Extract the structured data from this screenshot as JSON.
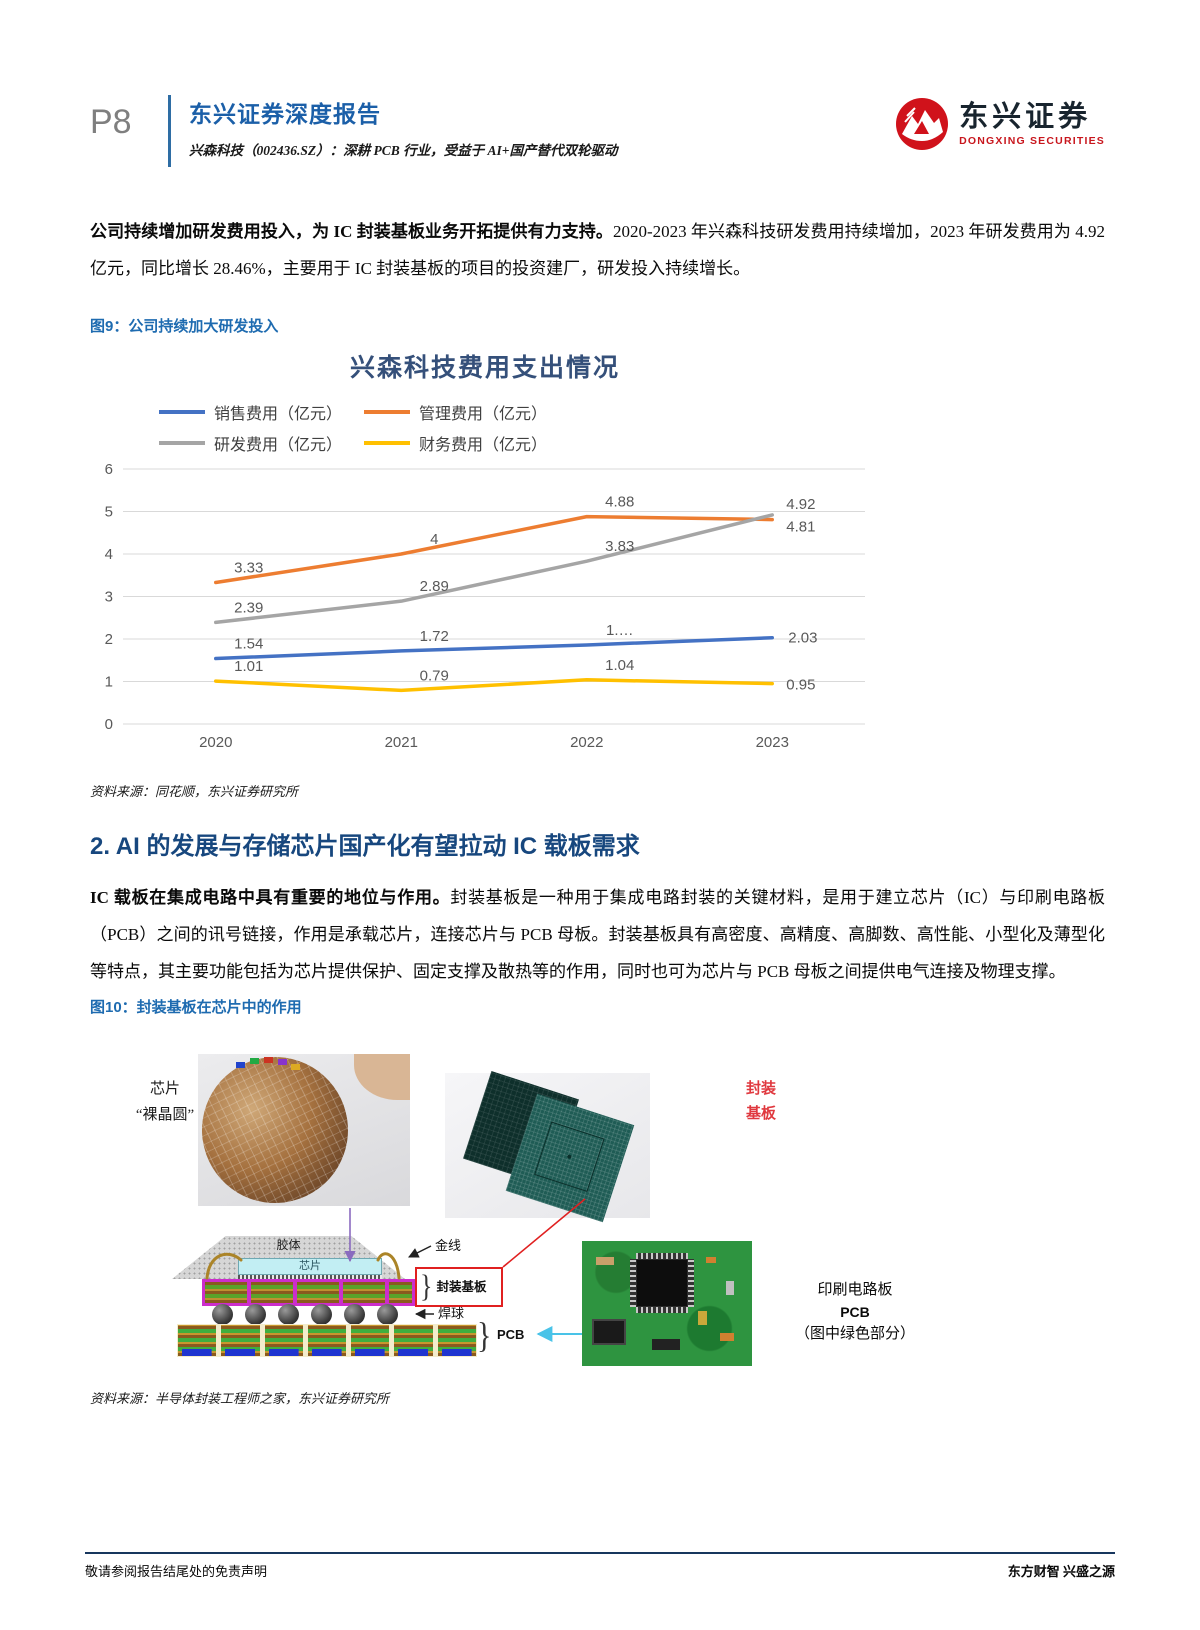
{
  "page": {
    "page_number": "P8",
    "report_type": "东兴证券深度报告",
    "report_subtitle": "兴森科技（002436.SZ）：深耕 PCB 行业，受益于 AI+国产替代双轮驱动",
    "logo_cn": "东兴证券",
    "logo_en": "DONGXING SECURITIES",
    "brand_red": "#c8161d",
    "heading_blue": "#1b5fa8"
  },
  "para1": {
    "bold": "公司持续增加研发费用投入，为 IC 封装基板业务开拓提供有力支持。",
    "rest": "2020-2023 年兴森科技研发费用持续增加，2023 年研发费用为 4.92 亿元，同比增长 28.46%，主要用于 IC 封装基板的项目的投资建厂，研发投入持续增长。"
  },
  "figure9": {
    "caption": "图9：公司持续加大研发投入",
    "source": "资料来源：同花顺，东兴证券研究所"
  },
  "chart_data": {
    "type": "line",
    "title": "兴森科技费用支出情况",
    "categories": [
      "2020",
      "2021",
      "2022",
      "2023"
    ],
    "series": [
      {
        "name": "销售费用（亿元）",
        "color": "#4472c4",
        "values": [
          1.54,
          1.72,
          1.86,
          2.03
        ],
        "labels": [
          "1.54",
          "1.72",
          "1.…",
          "2.03"
        ]
      },
      {
        "name": "管理费用（亿元）",
        "color": "#ed7d31",
        "values": [
          3.33,
          4,
          4.88,
          4.81
        ],
        "labels": [
          "3.33",
          "4",
          "4.88",
          "4.81"
        ]
      },
      {
        "name": "研发费用（亿元）",
        "color": "#a5a5a5",
        "values": [
          2.39,
          2.89,
          3.83,
          4.92
        ],
        "labels": [
          "2.39",
          "2.89",
          "3.83",
          "4.92"
        ]
      },
      {
        "name": "财务费用（亿元）",
        "color": "#ffc000",
        "values": [
          1.01,
          0.79,
          1.04,
          0.95
        ],
        "labels": [
          "1.01",
          "0.79",
          "1.04",
          "0.95"
        ]
      }
    ],
    "ylim": [
      0,
      6
    ],
    "yticks": [
      0,
      1,
      2,
      3,
      4,
      5,
      6
    ],
    "grid": true,
    "legend_position": "top-left",
    "label_color": "#595959",
    "grid_color": "#d9d9d9"
  },
  "section2": {
    "heading": "2. AI 的发展与存储芯片国产化有望拉动 IC 载板需求",
    "para_bold": "IC 载板在集成电路中具有重要的地位与作用。",
    "para_rest": "封装基板是一种用于集成电路封装的关键材料，是用于建立芯片（IC）与印刷电路板（PCB）之间的讯号链接，作用是承载芯片，连接芯片与 PCB 母板。封装基板具有高密度、高精度、高脚数、高性能、小型化及薄型化等特点，其主要功能包括为芯片提供保护、固定支撑及散热等的作用，同时也可为芯片与 PCB 母板之间提供电气连接及物理支撑。"
  },
  "figure10": {
    "caption": "图10：封装基板在芯片中的作用",
    "wafer_label_1": "芯片",
    "wafer_label_2": "“裸晶圆”",
    "substrate_label_1": "封装",
    "substrate_label_2": "基板",
    "molding_label": "胶体",
    "die_label": "芯片",
    "gold_wire_label": "金线",
    "package_substrate_label": "封装基板",
    "solder_ball_label": "焊球",
    "pcb_label": "PCB",
    "brace": "}",
    "pcb_right_label_1": "印刷电路板",
    "pcb_right_label_2": "PCB",
    "pcb_right_label_3": "（图中绿色部分）",
    "source": "资料来源：半导体封装工程师之家，东兴证券研究所"
  },
  "footer": {
    "left": "敬请参阅报告结尾处的免责声明",
    "right": "东方财智 兴盛之源"
  }
}
